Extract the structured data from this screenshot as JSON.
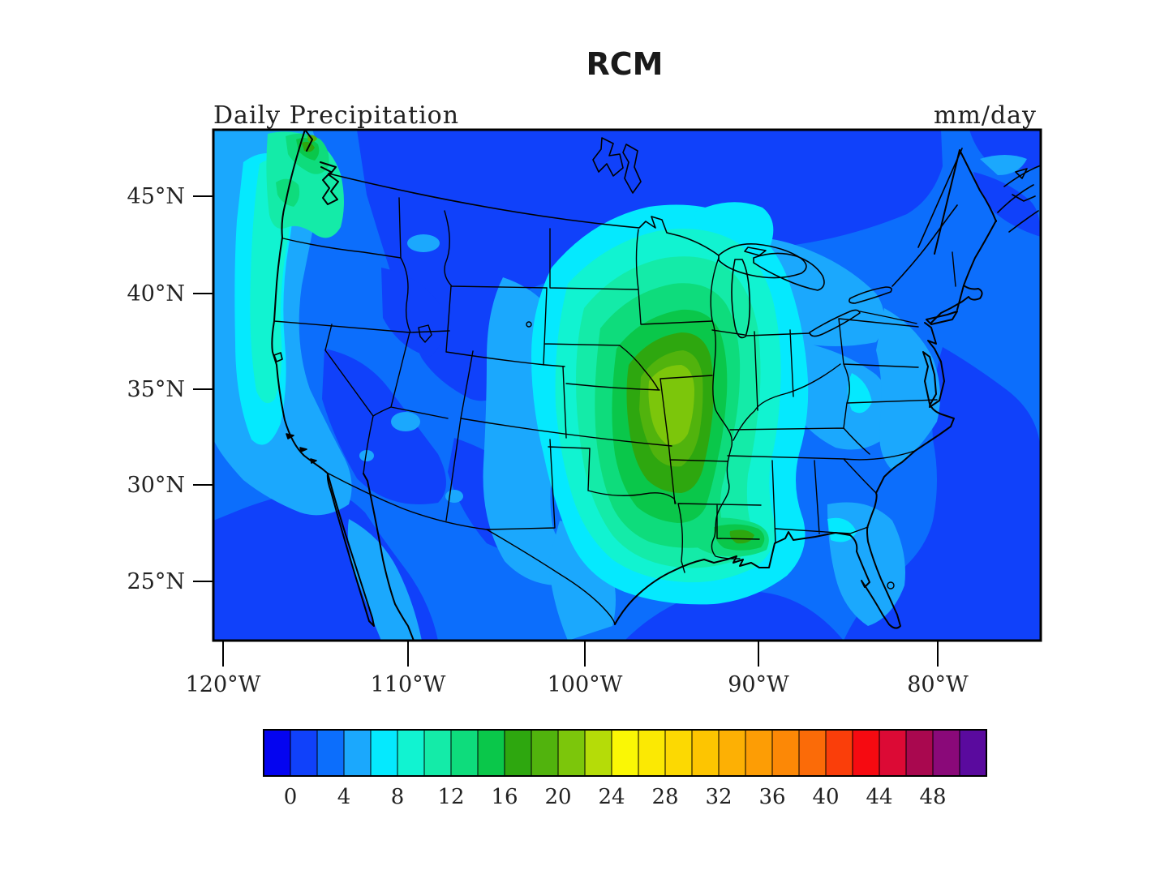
{
  "header": {
    "title": "RCM",
    "subtitle_left": "Daily Precipitation",
    "units_right": "mm/day"
  },
  "axes": {
    "lat_ticks": [
      "45°N",
      "40°N",
      "35°N",
      "30°N",
      "25°N"
    ],
    "lon_ticks": [
      "120°W",
      "110°W",
      "100°W",
      "90°W",
      "80°W"
    ]
  },
  "colorbar": {
    "labels": [
      "0",
      "4",
      "8",
      "12",
      "16",
      "20",
      "24",
      "28",
      "32",
      "36",
      "40",
      "44",
      "48"
    ],
    "palette": [
      "#0404F0",
      "#1041FA",
      "#0C6EFC",
      "#1BA8FD",
      "#05E9FE",
      "#11F3D1",
      "#14EBA8",
      "#0EDC7C",
      "#0AC74A",
      "#2EA70F",
      "#51B30D",
      "#7CC60B",
      "#B5DC08",
      "#FAF705",
      "#FBE903",
      "#FCD902",
      "#FDC501",
      "#FDB004",
      "#FD9D05",
      "#FC8806",
      "#FB6B08",
      "#FA3E0A",
      "#F60A11",
      "#DC0A35",
      "#A9084F",
      "#8A0979",
      "#5A0A9E"
    ]
  },
  "chart_data": {
    "type": "heatmap",
    "subtype": "filled_contour_map",
    "title": "RCM",
    "field": "Daily Precipitation",
    "units": "mm/day",
    "region": "Continental United States (Lambert-conformal style projection)",
    "xlabel": "Longitude",
    "ylabel": "Latitude",
    "lon_tick_values_deg_west": [
      120,
      110,
      100,
      90,
      80
    ],
    "lat_tick_values_deg_north": [
      45,
      40,
      35,
      30,
      25
    ],
    "contour_levels": {
      "min": 0,
      "max": 50,
      "interval": 2
    },
    "colorbar_tick_values": [
      0,
      4,
      8,
      12,
      16,
      20,
      24,
      28,
      32,
      36,
      40,
      44,
      48
    ],
    "palette_hex": [
      "#0404F0",
      "#1041FA",
      "#0C6EFC",
      "#1BA8FD",
      "#05E9FE",
      "#11F3D1",
      "#14EBA8",
      "#0EDC7C",
      "#0AC74A",
      "#2EA70F",
      "#51B30D",
      "#7CC60B",
      "#B5DC08",
      "#FAF705",
      "#FBE903",
      "#FCD902",
      "#FDC501",
      "#FDB004",
      "#FD9D05",
      "#FC8806",
      "#FB6B08",
      "#FA3E0A",
      "#F60A11",
      "#DC0A35",
      "#A9084F",
      "#8A0979",
      "#5A0A9E"
    ],
    "features": [
      {
        "region": "Central US (Missouri / Arkansas / eastern Oklahoma)",
        "description": "primary precipitation maximum with concentric contours",
        "approx_peak_mm_day": 22
      },
      {
        "region": "Gulf Coast (Louisiana / Mississippi / Alabama)",
        "description": "secondary coastal maximum",
        "approx_peak_mm_day": 16
      },
      {
        "region": "Pacific Northwest coast (Washington / Puget Sound)",
        "description": "small orographic coastal maximum",
        "approx_peak_mm_day": 18
      },
      {
        "region": "West Coast band (Oregon / California coast)",
        "description": "strip of enhanced precipitation",
        "approx_peak_mm_day": 10
      },
      {
        "region": "Northern plains, Canada, open Atlantic and Gulf of Mexico",
        "description": "background minimum",
        "approx_peak_mm_day": 2
      }
    ]
  }
}
